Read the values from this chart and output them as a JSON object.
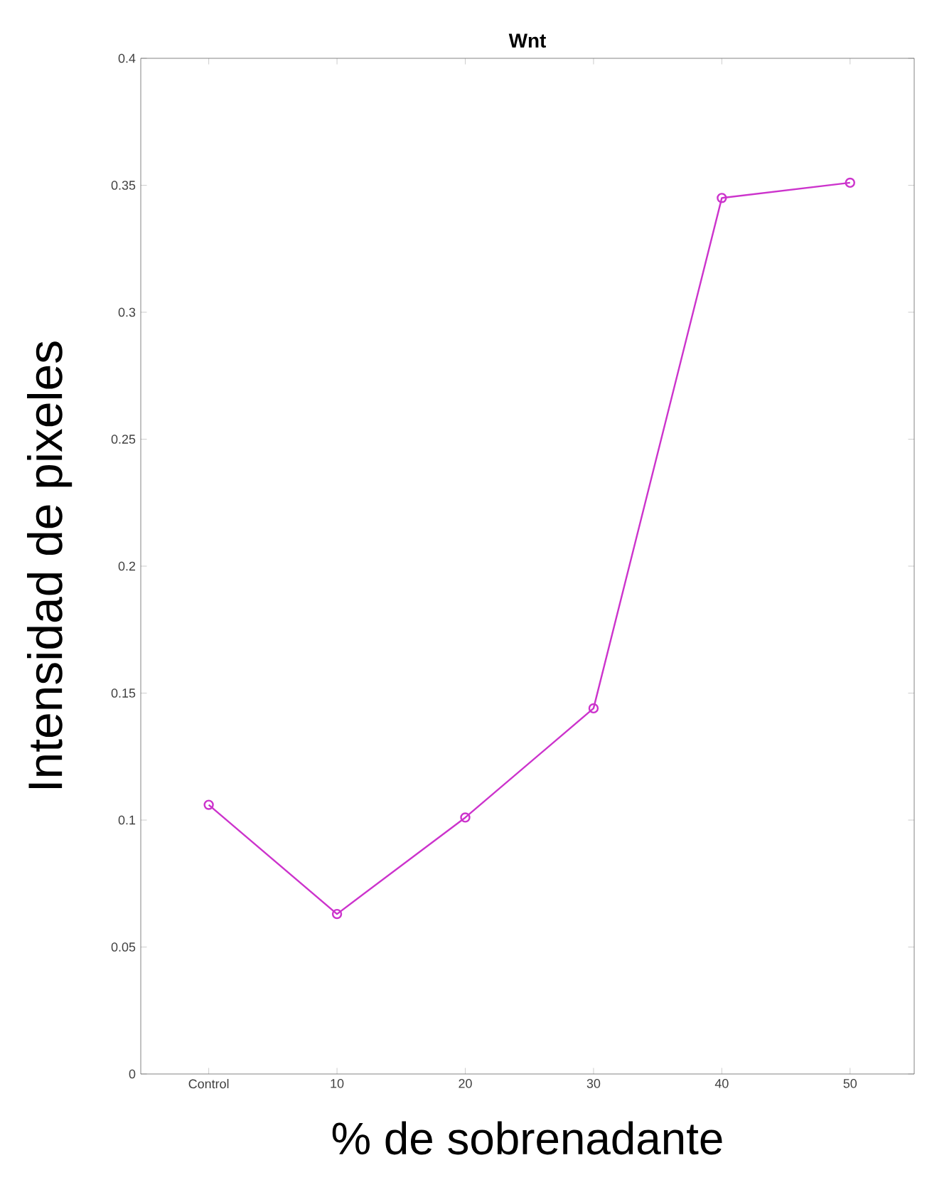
{
  "chart_data": {
    "type": "line",
    "title": "Wnt",
    "xlabel": "% de sobrenadante",
    "ylabel": "Intensidad de pixeles",
    "categories": [
      "Control",
      "10",
      "20",
      "30",
      "40",
      "50"
    ],
    "series": [
      {
        "color": "#cc33cc",
        "values": [
          0.106,
          0.063,
          0.101,
          0.144,
          0.345,
          0.351
        ]
      }
    ],
    "ylim": [
      0,
      0.4
    ],
    "yticks": [
      0,
      0.05,
      0.1,
      0.15,
      0.2,
      0.25,
      0.3,
      0.35,
      0.4
    ],
    "marker": "circle",
    "line_style": "solid",
    "grid": false
  }
}
